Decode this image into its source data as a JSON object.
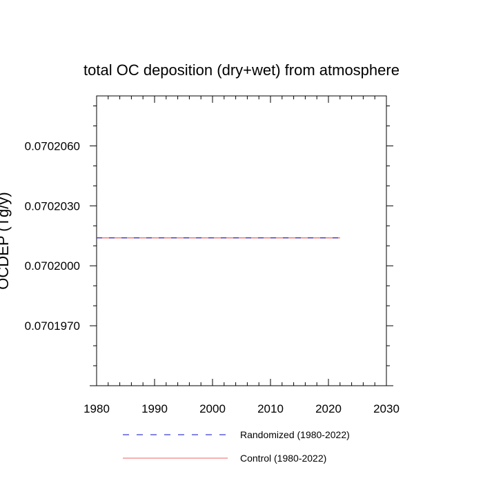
{
  "chart_data": {
    "type": "line",
    "title": "total OC deposition (dry+wet) from atmosphere",
    "ylabel": "OCDEP (Tg/y)",
    "xlabel": "",
    "xlim": [
      1980,
      2030
    ],
    "ylim": [
      0.070194,
      0.0702085
    ],
    "x_ticks": [
      1980,
      1990,
      2000,
      2010,
      2020,
      2030
    ],
    "x_tick_labels": [
      "1980",
      "1990",
      "2000",
      "2010",
      "2020",
      "2030"
    ],
    "y_ticks": [
      0.070197,
      0.0702,
      0.070203,
      0.070206
    ],
    "y_tick_labels": [
      "0.0701970",
      "0.0702000",
      "0.0702030",
      "0.0702060"
    ],
    "grid": false,
    "legend_position": "bottom",
    "series": [
      {
        "name": "Randomized (1980-2022)",
        "color": "#3b3bd6",
        "dash": "dashed",
        "x": [
          1980,
          2022
        ],
        "y": [
          0.0702014,
          0.0702014
        ]
      },
      {
        "name": "Control (1980-2022)",
        "color": "#f08080",
        "dash": "solid",
        "x": [
          1980,
          2022
        ],
        "y": [
          0.0702014,
          0.0702014
        ]
      }
    ]
  }
}
